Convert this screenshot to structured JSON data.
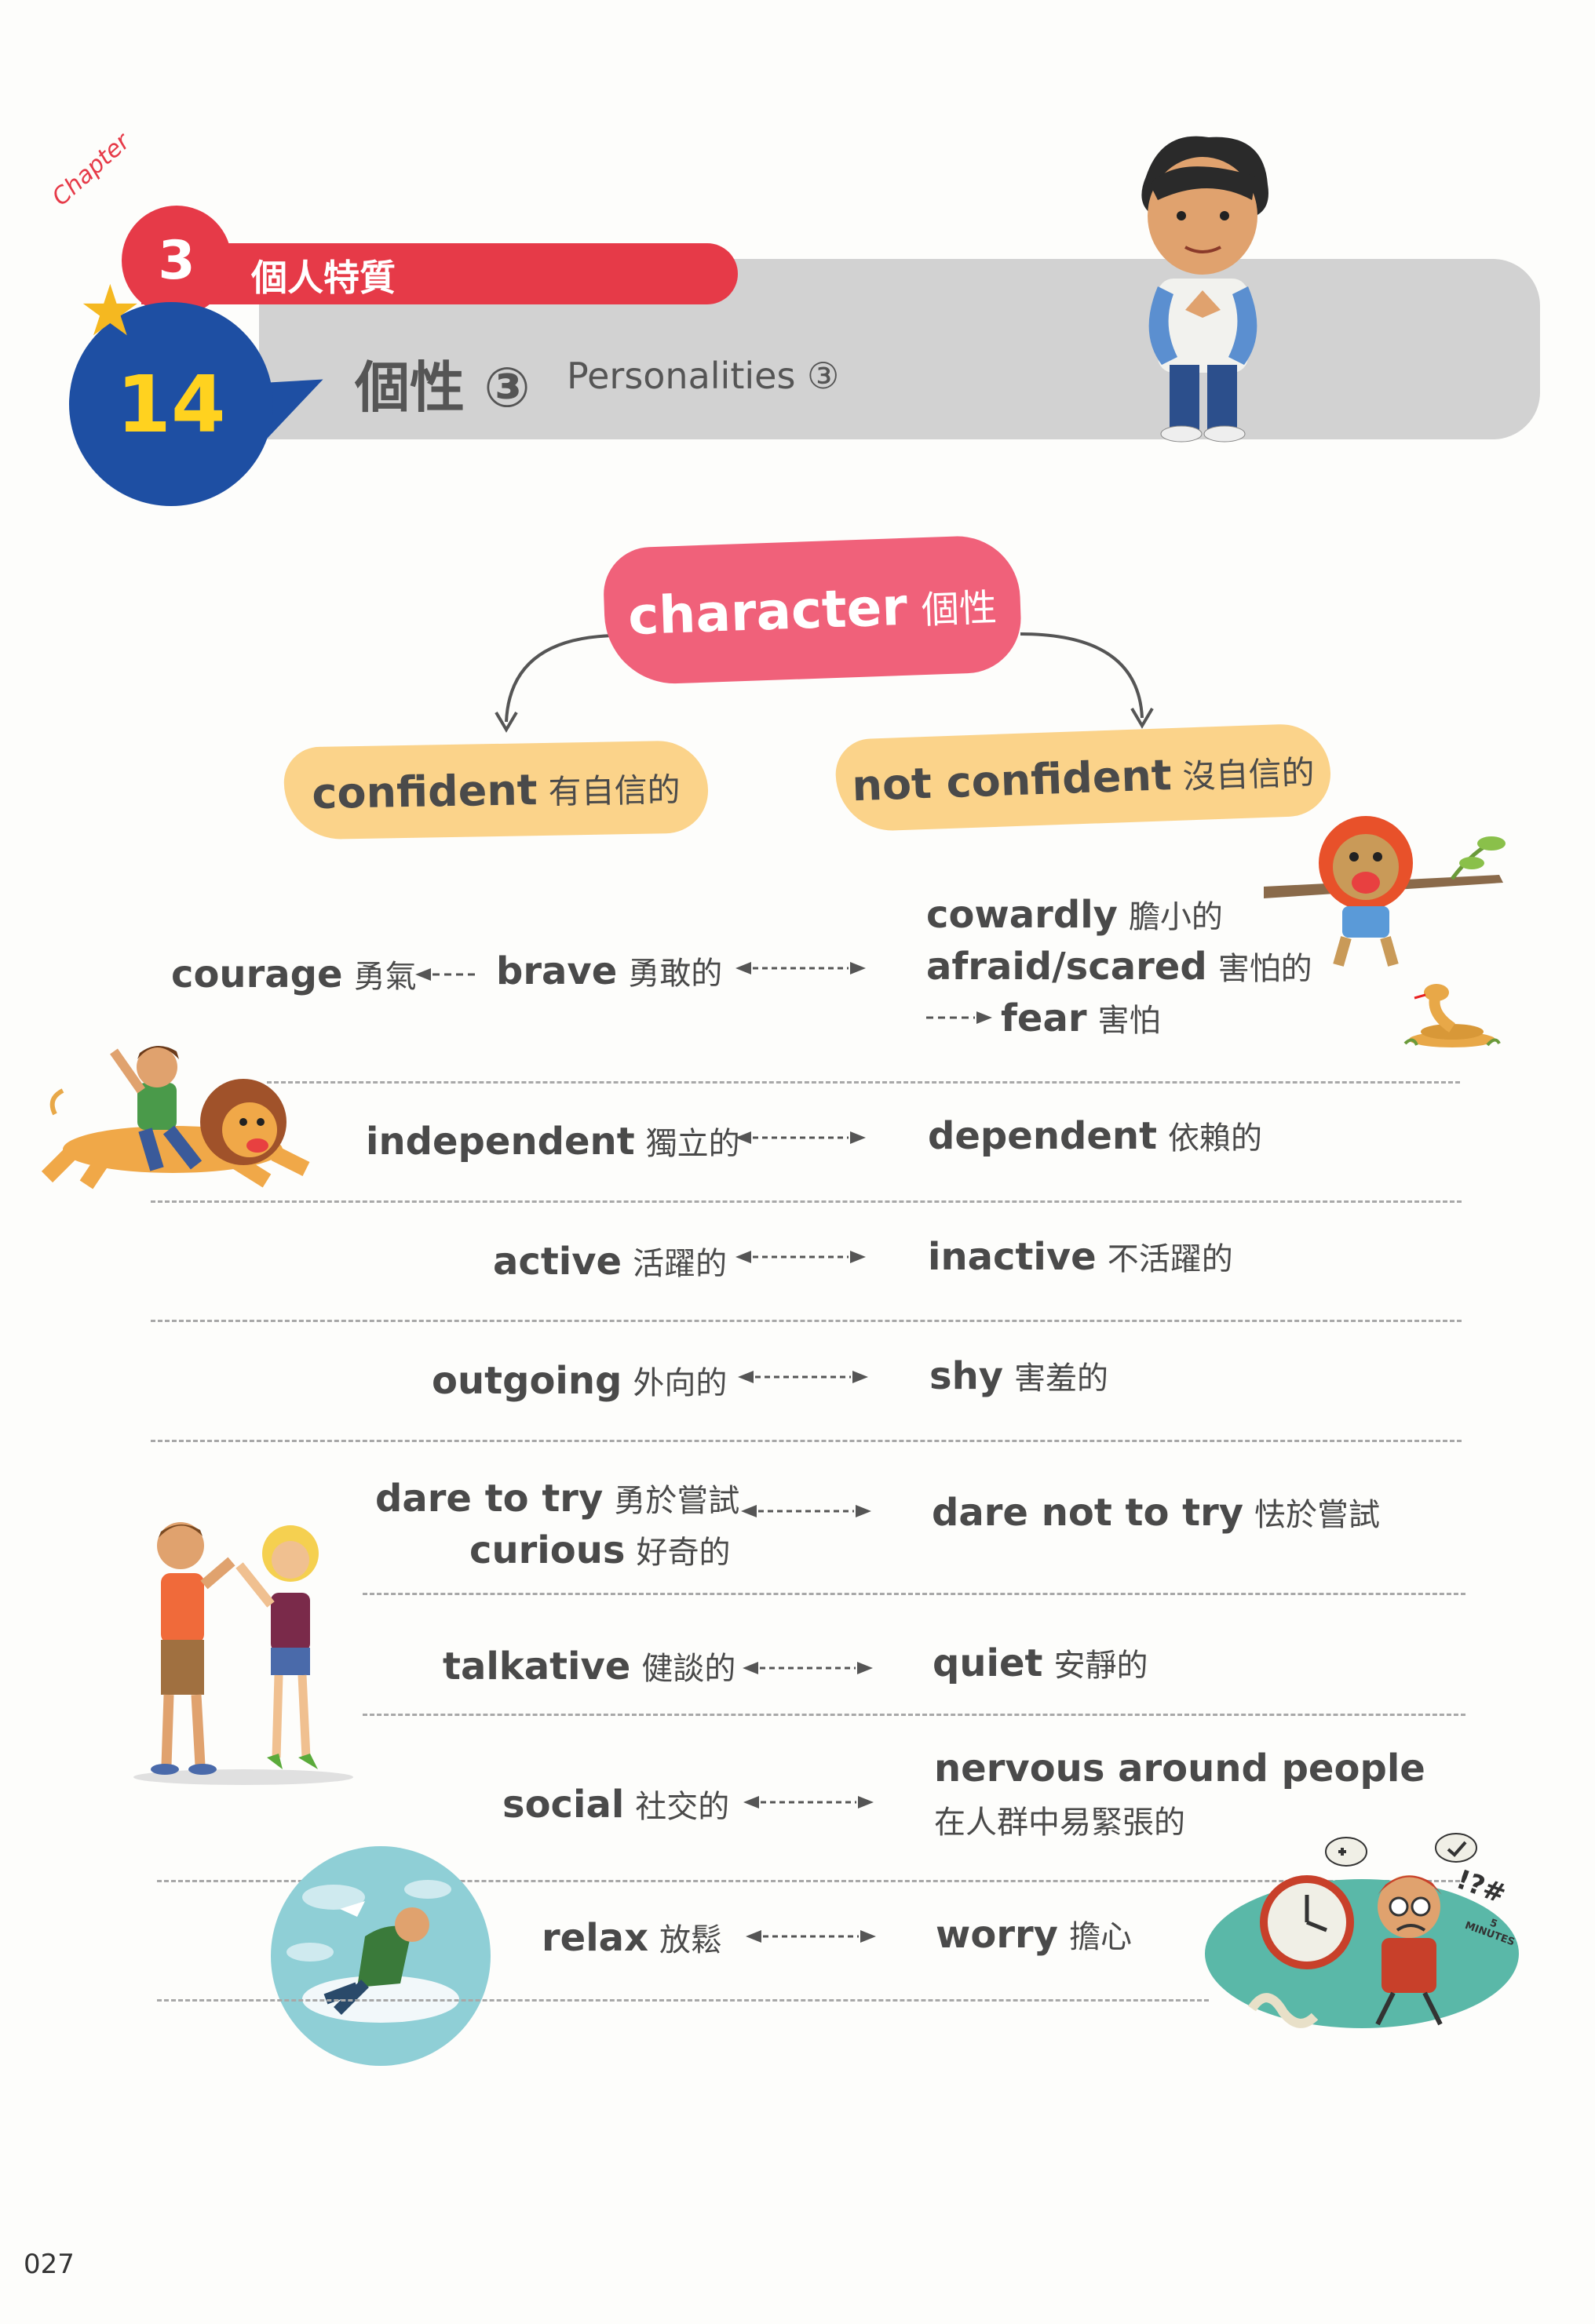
{
  "header": {
    "chapter_label": "Chapter",
    "chapter_number": "3",
    "chapter_title": "個人特質",
    "lesson_number": "14",
    "lesson_title_zh": "個性 ③",
    "lesson_title_en": "Personalities ③"
  },
  "tree": {
    "root": {
      "en": "character",
      "zh": "個性"
    },
    "left": {
      "en": "confident",
      "zh": "有自信的"
    },
    "right": {
      "en": "not confident",
      "zh": "沒自信的"
    }
  },
  "rows": {
    "brave": {
      "left_extra": {
        "en": "courage",
        "zh": "勇氣"
      },
      "left": {
        "en": "brave",
        "zh": "勇敢的"
      },
      "right": [
        {
          "en": "cowardly",
          "zh": "膽小的"
        },
        {
          "en": "afraid/scared",
          "zh": "害怕的"
        },
        {
          "en": "fear",
          "zh": "害怕"
        }
      ]
    },
    "independent": {
      "left": {
        "en": "independent",
        "zh": "獨立的"
      },
      "right": {
        "en": "dependent",
        "zh": "依賴的"
      }
    },
    "active": {
      "left": {
        "en": "active",
        "zh": "活躍的"
      },
      "right": {
        "en": "inactive",
        "zh": "不活躍的"
      }
    },
    "outgoing": {
      "left": {
        "en": "outgoing",
        "zh": "外向的"
      },
      "right": {
        "en": "shy",
        "zh": "害羞的"
      }
    },
    "dare": {
      "left": [
        {
          "en": "dare to try",
          "zh": "勇於嘗試"
        },
        {
          "en": "curious",
          "zh": "好奇的"
        }
      ],
      "right": {
        "en": "dare not to try",
        "zh": "怯於嘗試"
      }
    },
    "talkative": {
      "left": {
        "en": "talkative",
        "zh": "健談的"
      },
      "right": {
        "en": "quiet",
        "zh": "安靜的"
      }
    },
    "social": {
      "left": {
        "en": "social",
        "zh": "社交的"
      },
      "right": {
        "en": "nervous around people",
        "zh": "在人群中易緊張的"
      }
    },
    "relax": {
      "left": {
        "en": "relax",
        "zh": "放鬆"
      },
      "right": {
        "en": "worry",
        "zh": "擔心"
      }
    }
  },
  "illustrations": {
    "boy": "boy-character",
    "lion_tree": "scared-lion-on-branch",
    "snake": "snake",
    "boy_on_lion": "boy-riding-lion",
    "couple": "man-and-woman-high-five",
    "cloud_man": "man-relaxing-on-cloud",
    "clock_man": "worried-man-with-clock",
    "clock_text": "5 MINUTES",
    "clock_symbols": "!?#"
  },
  "page_number": "027",
  "colors": {
    "red": "#e63a48",
    "blue": "#1e4fa3",
    "yellow": "#ffd21f",
    "pink": "#f0617a",
    "peach": "#fbd38a",
    "gray": "#d2d2d2"
  }
}
